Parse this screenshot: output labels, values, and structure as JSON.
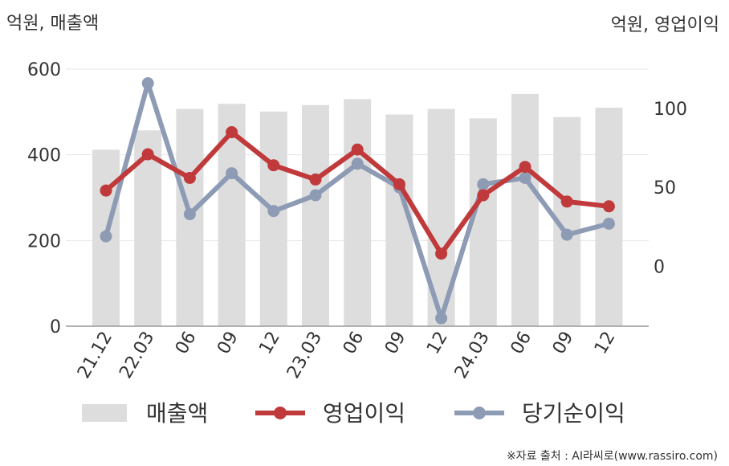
{
  "chart_data": {
    "type": "bar",
    "categories": [
      "21.12",
      "22.03",
      "06",
      "09",
      "12",
      "23.03",
      "06",
      "09",
      "12",
      "24.03",
      "06",
      "09",
      "12"
    ],
    "series": [
      {
        "name": "매출액",
        "type": "bar",
        "axis": "left",
        "color": "#dddddd",
        "values": [
          412,
          457,
          507,
          519,
          501,
          516,
          530,
          494,
          507,
          485,
          542,
          488,
          510
        ]
      },
      {
        "name": "영업이익",
        "type": "line",
        "axis": "right",
        "color": "#c0393b",
        "values": [
          48,
          71,
          56,
          85,
          64,
          55,
          74,
          52,
          8,
          45,
          63,
          41,
          38
        ]
      },
      {
        "name": "당기순이익",
        "type": "line",
        "axis": "right",
        "color": "#8e9bb5",
        "values": [
          19,
          116,
          33,
          59,
          35,
          45,
          65,
          50,
          -33,
          52,
          56,
          20,
          27
        ]
      }
    ],
    "left_axis": {
      "title": "억원, 매출액",
      "ylim": [
        0,
        600
      ],
      "ticks": [
        "0",
        "200",
        "400",
        "600"
      ],
      "tick_values": [
        0,
        200,
        400,
        600
      ]
    },
    "right_axis": {
      "title": "억원, 영업이익",
      "ylim": [
        -38,
        125
      ],
      "ticks": [
        "0",
        "50",
        "100"
      ],
      "tick_values": [
        0,
        50,
        100
      ]
    },
    "grid": true,
    "legend_position": "bottom"
  },
  "source_note": "※자료 출처 : AI라씨로(www.rassiro.com)"
}
